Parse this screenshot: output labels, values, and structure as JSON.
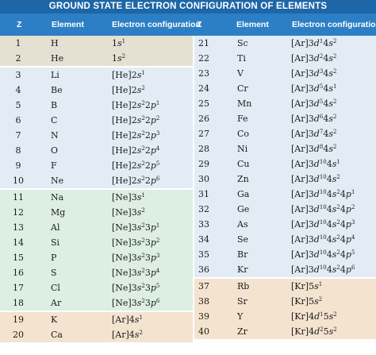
{
  "title": "GROUND STATE ELECTRON CONFIGURATION OF ELEMENTS",
  "headers": {
    "z": "Z",
    "element": "Element",
    "config": "Electron configuration"
  },
  "colors": {
    "title_bg": "#1d66a8",
    "header_bg": "#2c7fc4",
    "group_1": "#e4e0d2",
    "group_2": "#e3ecf5",
    "group_3": "#dcefe2",
    "group_4": "#f4e3cf"
  },
  "elements": [
    {
      "z": "1",
      "symbol": "H",
      "config": "1s^1"
    },
    {
      "z": "2",
      "symbol": "He",
      "config": "1s^2"
    },
    {
      "z": "3",
      "symbol": "Li",
      "config": "[He]2s^1"
    },
    {
      "z": "4",
      "symbol": "Be",
      "config": "[He]2s^2"
    },
    {
      "z": "5",
      "symbol": "B",
      "config": "[He]2s^2 2p^1"
    },
    {
      "z": "6",
      "symbol": "C",
      "config": "[He]2s^2 2p^2"
    },
    {
      "z": "7",
      "symbol": "N",
      "config": "[He]2s^2 2p^3"
    },
    {
      "z": "8",
      "symbol": "O",
      "config": "[He]2s^2 2p^4"
    },
    {
      "z": "9",
      "symbol": "F",
      "config": "[He]2s^2 2p^5"
    },
    {
      "z": "10",
      "symbol": "Ne",
      "config": "[He]2s^2 2p^6"
    },
    {
      "z": "11",
      "symbol": "Na",
      "config": "[Ne]3s^1"
    },
    {
      "z": "12",
      "symbol": "Mg",
      "config": "[Ne]3s^2"
    },
    {
      "z": "13",
      "symbol": "Al",
      "config": "[Ne]3s^2 3p^1"
    },
    {
      "z": "14",
      "symbol": "Si",
      "config": "[Ne]3s^2 3p^2"
    },
    {
      "z": "15",
      "symbol": "P",
      "config": "[Ne]3s^2 3p^3"
    },
    {
      "z": "16",
      "symbol": "S",
      "config": "[Ne]3s^2 3p^4"
    },
    {
      "z": "17",
      "symbol": "Cl",
      "config": "[Ne]3s^2 3p^5"
    },
    {
      "z": "18",
      "symbol": "Ar",
      "config": "[Ne]3s^2 3p^6"
    },
    {
      "z": "19",
      "symbol": "K",
      "config": "[Ar]4s^1"
    },
    {
      "z": "20",
      "symbol": "Ca",
      "config": "[Ar]4s^2"
    },
    {
      "z": "21",
      "symbol": "Sc",
      "config": "[Ar]3d^1 4s^2"
    },
    {
      "z": "22",
      "symbol": "Ti",
      "config": "[Ar]3d^2 4s^2"
    },
    {
      "z": "23",
      "symbol": "V",
      "config": "[Ar]3d^3 4s^2"
    },
    {
      "z": "24",
      "symbol": "Cr",
      "config": "[Ar]3d^5 4s^1"
    },
    {
      "z": "25",
      "symbol": "Mn",
      "config": "[Ar]3d^5 4s^2"
    },
    {
      "z": "26",
      "symbol": "Fe",
      "config": "[Ar]3d^6 4s^2"
    },
    {
      "z": "27",
      "symbol": "Co",
      "config": "[Ar]3d^7 4s^2"
    },
    {
      "z": "28",
      "symbol": "Ni",
      "config": "[Ar]3d^8 4s^2"
    },
    {
      "z": "29",
      "symbol": "Cu",
      "config": "[Ar]3d^10 4s^1"
    },
    {
      "z": "30",
      "symbol": "Zn",
      "config": "[Ar]3d^10 4s^2"
    },
    {
      "z": "31",
      "symbol": "Ga",
      "config": "[Ar]3d^10 4s^2 4p^1"
    },
    {
      "z": "32",
      "symbol": "Ge",
      "config": "[Ar]3d^10 4s^2 4p^2"
    },
    {
      "z": "33",
      "symbol": "As",
      "config": "[Ar]3d^10 4s^2 4p^3"
    },
    {
      "z": "34",
      "symbol": "Se",
      "config": "[Ar]3d^10 4s^2 4p^4"
    },
    {
      "z": "35",
      "symbol": "Br",
      "config": "[Ar]3d^10 4s^2 4p^5"
    },
    {
      "z": "36",
      "symbol": "Kr",
      "config": "[Ar]3d^10 4s^2 4p^6"
    },
    {
      "z": "37",
      "symbol": "Rb",
      "config": "[Kr]5s^1"
    },
    {
      "z": "38",
      "symbol": "Sr",
      "config": "[Kr]5s^2"
    },
    {
      "z": "39",
      "symbol": "Y",
      "config": "[Kr]4d^1 5s^2"
    },
    {
      "z": "40",
      "symbol": "Zr",
      "config": "[Kr]4d^2 5s^2"
    }
  ]
}
